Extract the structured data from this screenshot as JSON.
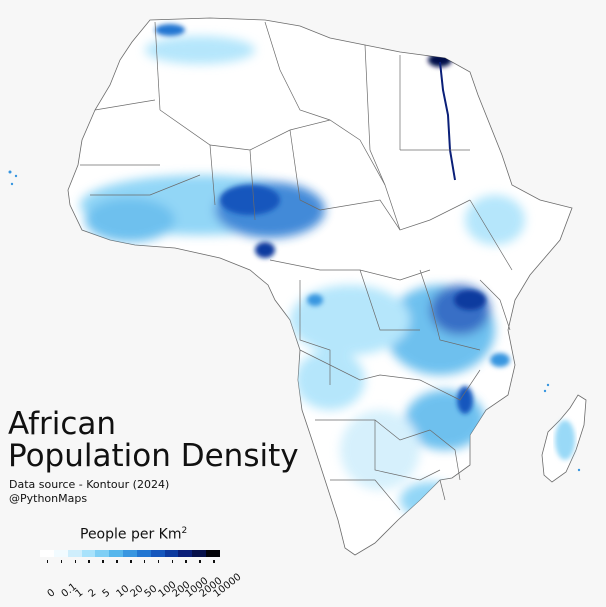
{
  "title_line1": "African",
  "title_line2": "Population Density",
  "source_line1": "Data source - Kontour (2024)",
  "source_line2": "@PythonMaps",
  "legend": {
    "title": "People per Km",
    "title_sup": "2",
    "bins": [
      "0",
      "0.1",
      "1",
      "2",
      "5",
      "10",
      "20",
      "50",
      "100",
      "200",
      "1000",
      "2000",
      "10000"
    ],
    "colors": [
      "#ffffff",
      "#f2fbff",
      "#cfeefc",
      "#a8e2fb",
      "#7fcff5",
      "#55b6ec",
      "#3896e0",
      "#2276d2",
      "#1557bd",
      "#0d3a9f",
      "#0a1f78",
      "#06104a",
      "#020208"
    ]
  },
  "map": {
    "background": "#f7f7f7",
    "land": "#ffffff",
    "borders": "#6b6b6b"
  }
}
